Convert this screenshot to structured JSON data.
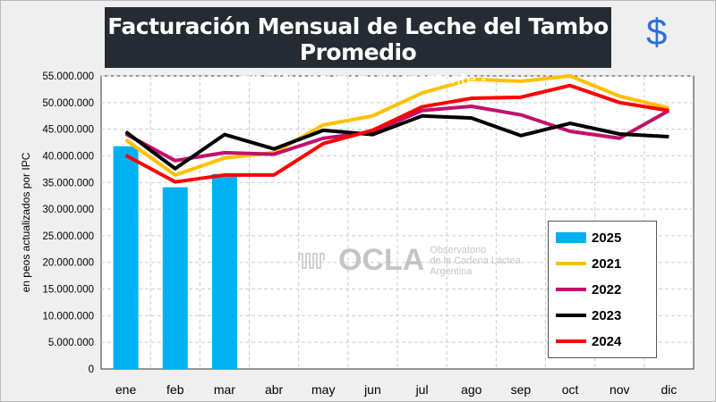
{
  "header": {
    "title": "Facturación Mensual de Leche del Tambo Promedio",
    "subtitle": "- sin IVA y en moneda constante -",
    "currency_icon": "$"
  },
  "watermark": {
    "name": "OCLA",
    "line1": "Observatorio",
    "line2": "de la Cadena Láctea",
    "line3": "Argentina"
  },
  "chart_data": {
    "type": "bar+line",
    "title": "Facturación Mensual de Leche del Tambo Promedio",
    "subtitle": "- sin IVA y en moneda constante -",
    "ylabel": "en peos actualizados por IPC",
    "xlabel": "",
    "ylim": [
      0,
      55000000
    ],
    "yticks": [
      "0",
      "5.000.000",
      "10.000.000",
      "15.000.000",
      "20.000.000",
      "25.000.000",
      "30.000.000",
      "35.000.000",
      "40.000.000",
      "45.000.000",
      "50.000.000",
      "55.000.000"
    ],
    "categories": [
      "ene",
      "feb",
      "mar",
      "abr",
      "may",
      "jun",
      "jul",
      "ago",
      "sep",
      "oct",
      "nov",
      "dic"
    ],
    "grid": true,
    "legend_position": "bottom-right",
    "bars": {
      "name": "2025",
      "color": "#00b0f0",
      "values": [
        41800000,
        34100000,
        36600000
      ]
    },
    "series": [
      {
        "name": "2021",
        "color": "#ffc000",
        "values": [
          43000000,
          36400000,
          39600000,
          40600000,
          45800000,
          47500000,
          51800000,
          54400000,
          54000000,
          55000000,
          51200000,
          49000000
        ]
      },
      {
        "name": "2022",
        "color": "#c0116b",
        "values": [
          44100000,
          39100000,
          40600000,
          40300000,
          43300000,
          44500000,
          48500000,
          49300000,
          47700000,
          44600000,
          43300000,
          48500000
        ]
      },
      {
        "name": "2023",
        "color": "#000000",
        "values": [
          44500000,
          37600000,
          44000000,
          41300000,
          44800000,
          44000000,
          47500000,
          47100000,
          43800000,
          46100000,
          44100000,
          43600000
        ]
      },
      {
        "name": "2024",
        "color": "#ff0000",
        "values": [
          40100000,
          35100000,
          36400000,
          36400000,
          42300000,
          44800000,
          49200000,
          50800000,
          51000000,
          53200000,
          50000000,
          48500000
        ]
      }
    ]
  }
}
